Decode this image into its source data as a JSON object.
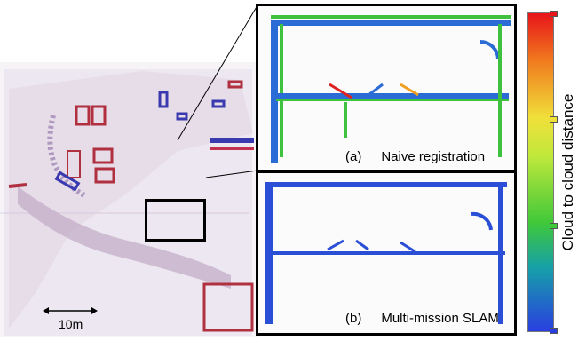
{
  "map": {
    "scale_label": "10m"
  },
  "insets": [
    {
      "tag": "(a)",
      "caption": "Naive registration"
    },
    {
      "tag": "(b)",
      "caption": "Multi-mission SLAM"
    }
  ],
  "colorbar": {
    "label": "Cloud to cloud distance",
    "colors": [
      "#e8141a",
      "#f07b1e",
      "#f0e03a",
      "#3fc83a",
      "#2a3ee0"
    ]
  }
}
